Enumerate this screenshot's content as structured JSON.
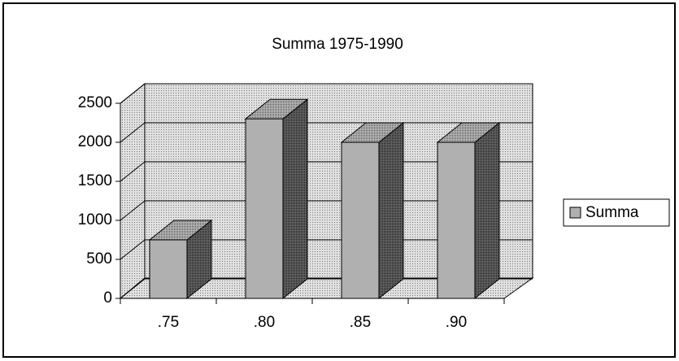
{
  "chart_data": {
    "type": "bar",
    "title": "Summa  1975-1990",
    "categories": [
      ".75",
      ".80",
      ".85",
      ".90"
    ],
    "series": [
      {
        "name": "Summa",
        "color": "#b0b0b0",
        "values": [
          750,
          2300,
          2000,
          2000
        ]
      }
    ],
    "ylim": [
      0,
      2500
    ],
    "yticks": [
      0,
      500,
      1000,
      1500,
      2000,
      2500
    ],
    "grid": true,
    "legend": "right"
  }
}
